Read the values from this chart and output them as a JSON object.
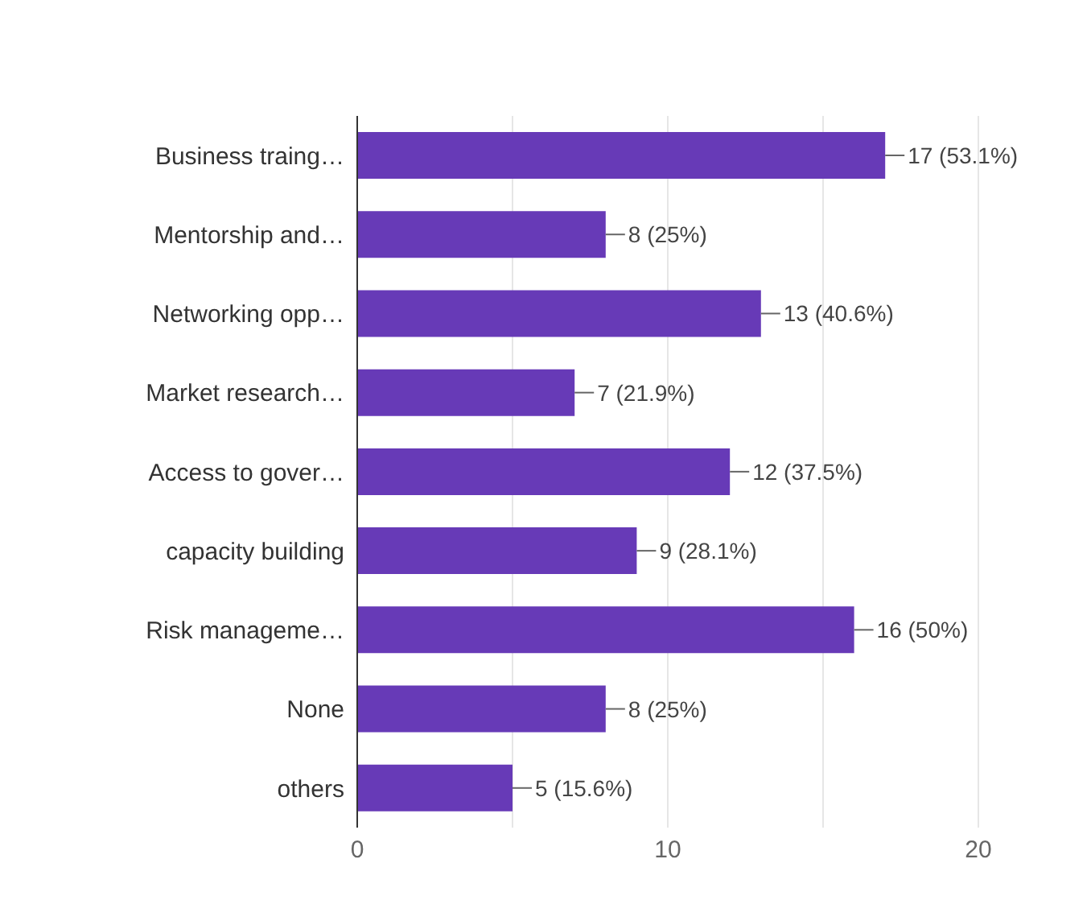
{
  "chart_data": {
    "type": "bar",
    "orientation": "horizontal",
    "categories": [
      "Business traing…",
      "Mentorship and…",
      "Networking opp…",
      "Market research…",
      "Access to gover…",
      "capacity building",
      "Risk manageme…",
      "None",
      "others"
    ],
    "values": [
      17,
      8,
      13,
      7,
      12,
      9,
      16,
      8,
      5
    ],
    "value_labels": [
      "17 (53.1%)",
      "8 (25%)",
      "13 (40.6%)",
      "7 (21.9%)",
      "12 (37.5%)",
      "9 (28.1%)",
      "16 (50%)",
      "8 (25%)",
      "5 (15.6%)"
    ],
    "color": "#673ab7",
    "xlim": [
      0,
      20
    ],
    "xticks": [
      0,
      {
        "value": 5,
        "label": null
      },
      10,
      {
        "value": 15,
        "label": null
      },
      20
    ],
    "grid": "x",
    "legend": false
  }
}
